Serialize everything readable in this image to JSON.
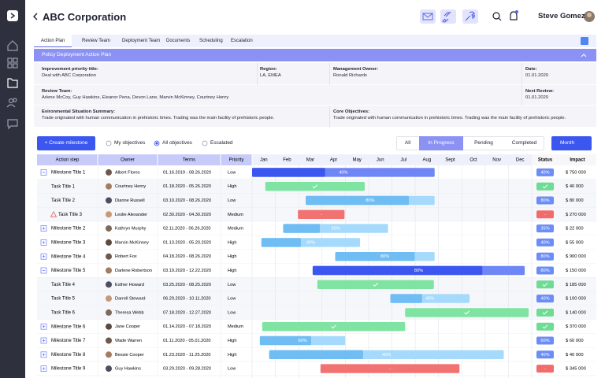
{
  "header": {
    "title": "ABC Corporation",
    "user": "Steve Gomez"
  },
  "tabs": [
    "Action Plan",
    "Review Team",
    "Deployment Team",
    "Documents",
    "Scheduling",
    "Escalation"
  ],
  "active_tab": 0,
  "panel": {
    "title": "Policy Deployment Action Plan",
    "fields": [
      {
        "label": "Improvement priority title:",
        "value": "Deal with ABC Corporation"
      },
      {
        "label": "Region:",
        "value": "LA, EMEA"
      },
      {
        "label": "Management Owner:",
        "value": "Ronald Richards"
      },
      {
        "label": "Date:",
        "value": "01.01.2020"
      },
      {
        "label": "Review Team:",
        "value": "Arlene McCoy, Guy Hawkins, Eleanor Pena, Devon Lane, Marvin McKinney, Courtney Henry"
      },
      {
        "label": "Next Review:",
        "value": "01.01.2020"
      },
      {
        "label": "Evironmental Situation Summary:",
        "value": "Trade originated with human communication in prehistoric times. Trading was the main facility of prehistoric people."
      },
      {
        "label": "Core Objectives:",
        "value": "Trade originated with human communication in prehistoric times. Trading was the main facility of prehistoric people."
      }
    ]
  },
  "toolbar": {
    "create": "+ Create milestone",
    "radios": [
      "My objectives",
      "All objectives",
      "Escalated"
    ],
    "selected_radio": 1,
    "filters": [
      "All",
      "In Progress",
      "Pending",
      "Completed"
    ],
    "selected_filter": 1,
    "period": "Month"
  },
  "table": {
    "columns": [
      "Action step",
      "Owner",
      "Terms",
      "Priority"
    ],
    "months": [
      "Jan",
      "Feb",
      "Mar",
      "Apr",
      "May",
      "Jun",
      "Jul",
      "Aug",
      "Sept",
      "Oct",
      "Nov",
      "Dec"
    ],
    "status_header": "Status",
    "impact_header": "Impact",
    "rows": [
      {
        "step": "Milestone Title 1",
        "kind": "milestone",
        "expanded": true,
        "owner": "Albert Flores",
        "terms": "01.16.2019 - 08.26.2020",
        "priority": "Low",
        "state": "active",
        "progress": 40,
        "progress_label": "40%",
        "impact": "$ 750 000"
      },
      {
        "step": "Task Title 1",
        "kind": "task",
        "owner": "Courtney Henry",
        "terms": "01.18.2020 - 05.26.2020",
        "priority": "High",
        "state": "done",
        "impact": "$ 40 000"
      },
      {
        "step": "Task Title 2",
        "kind": "task",
        "owner": "Dianne Russell",
        "terms": "03.10.2020 - 08.26.2020",
        "priority": "Low",
        "state": "active",
        "progress": 80,
        "progress_label": "80%",
        "impact": "$ 80 000"
      },
      {
        "step": "Task Title 3",
        "kind": "task",
        "warning": true,
        "owner": "Leslie Alexander",
        "terms": "02.30.2020 - 04.30.2020",
        "priority": "Medium",
        "state": "late",
        "progress_label": "-",
        "impact": "$ 270 000"
      },
      {
        "step": "Milestone Title 2",
        "kind": "milestone",
        "expanded": false,
        "owner": "Kathryn Murphy",
        "terms": "02.11.2020 - 06.26.2020",
        "priority": "Medium",
        "state": "active",
        "progress": 35,
        "progress_label": "35%",
        "impact": "$ 22 000"
      },
      {
        "step": "Milestone Title 3",
        "kind": "milestone",
        "expanded": false,
        "owner": "Marvin McKinney",
        "terms": "01.13.2020 - 05.20.2020",
        "priority": "High",
        "state": "active",
        "progress": 40,
        "progress_label": "40%",
        "impact": "$ 55 000"
      },
      {
        "step": "Milestone Title 4",
        "kind": "milestone",
        "expanded": false,
        "owner": "Robert Fox",
        "terms": "04.18.2020 - 08.26.2020",
        "priority": "High",
        "state": "active",
        "progress": 80,
        "progress_label": "80%",
        "impact": "$ 900 000"
      },
      {
        "step": "Milestone Title 5",
        "kind": "milestone",
        "expanded": true,
        "owner": "Darlene Robertson",
        "terms": "03.19.2020 - 12.22.2020",
        "priority": "High",
        "state": "active",
        "progress": 80,
        "progress_label": "80%",
        "impact": "$ 150 000"
      },
      {
        "step": "Task Title 4",
        "kind": "task",
        "owner": "Esther Howard",
        "terms": "03.25.2020 - 08.25.2020",
        "priority": "Low",
        "state": "done",
        "impact": "$ 185 000"
      },
      {
        "step": "Task Title 5",
        "kind": "task",
        "owner": "Darrell Steward",
        "terms": "06.29.2020 - 10.11.2020",
        "priority": "Low",
        "state": "active",
        "progress": 40,
        "progress_label": "40%",
        "impact": "$ 100 000"
      },
      {
        "step": "Task Title 6",
        "kind": "task",
        "owner": "Theresa Webb",
        "terms": "07.18.2020 - 12.27.2020",
        "priority": "Low",
        "state": "done",
        "impact": "$ 140 000"
      },
      {
        "step": "Milestone Title 6",
        "kind": "milestone",
        "expanded": false,
        "owner": "Jane Cooper",
        "terms": "01.14.2020 - 07.18.2020",
        "priority": "Medium",
        "state": "done",
        "impact": "$ 370 000"
      },
      {
        "step": "Milestone Title 7",
        "kind": "milestone",
        "expanded": false,
        "owner": "Wade Warren",
        "terms": "01.11.2020 - 05.01.2020",
        "priority": "High",
        "state": "active",
        "progress": 60,
        "progress_label": "60%",
        "impact": "$ 60 000"
      },
      {
        "step": "Milestone Title 8",
        "kind": "milestone",
        "expanded": false,
        "owner": "Bessie Cooper",
        "terms": "01.23.2020 - 11.25.2020",
        "priority": "High",
        "state": "active",
        "progress": 40,
        "progress_label": "40%",
        "impact": "$ 40 000"
      },
      {
        "step": "Milestone Title 9",
        "kind": "milestone",
        "expanded": false,
        "owner": "Guy Hawkins",
        "terms": "03.29.2020 - 09.28.2020",
        "priority": "Low",
        "state": "late",
        "progress_label": "-",
        "impact": "$ 345 000"
      }
    ]
  }
}
